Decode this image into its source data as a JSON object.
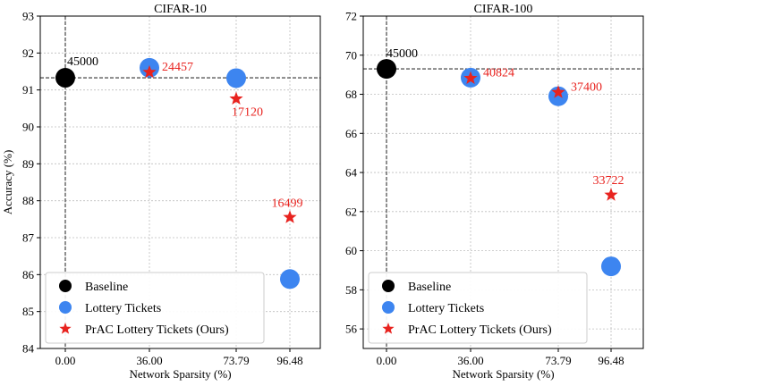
{
  "shared": {
    "xlabel": "Network Sparsity (%)",
    "ylabel": "Accuracy (%)",
    "xticks": [
      "0.00",
      "36.00",
      "73.79",
      "96.48"
    ],
    "legend": {
      "placement": "lower-left",
      "entries": [
        "Baseline",
        "Lottery Tickets",
        "PrAC Lottery Tickets (Ours)"
      ]
    },
    "colors": {
      "baseline": "#000000",
      "lottery": "#3d85f0",
      "prac": "#e8231f"
    },
    "grid": true
  },
  "chart_data": [
    {
      "type": "scatter",
      "title": "CIFAR-10",
      "xlabel": "Network Sparsity (%)",
      "ylabel": "Accuracy (%)",
      "xlim": [
        0,
        4
      ],
      "ylim": [
        84,
        93
      ],
      "yticks": [
        "84",
        "85",
        "86",
        "87",
        "88",
        "89",
        "90",
        "91",
        "92",
        "93"
      ],
      "baseline_line": 91.33,
      "series": [
        {
          "name": "Baseline",
          "marker": "circle",
          "points": [
            {
              "x": "0.00",
              "y": 91.33,
              "label": "45000"
            }
          ]
        },
        {
          "name": "Lottery Tickets",
          "marker": "circle",
          "points": [
            {
              "x": "36.00",
              "y": 91.6
            },
            {
              "x": "73.79",
              "y": 91.32
            },
            {
              "x": "96.48",
              "y": 85.88
            }
          ]
        },
        {
          "name": "PrAC Lottery Tickets (Ours)",
          "marker": "star",
          "points": [
            {
              "x": "36.00",
              "y": 91.48,
              "label": "24457"
            },
            {
              "x": "73.79",
              "y": 90.76,
              "label": "17120"
            },
            {
              "x": "96.48",
              "y": 87.55,
              "label": "16499"
            }
          ]
        }
      ]
    },
    {
      "type": "scatter",
      "title": "CIFAR-100",
      "xlabel": "Network Sparsity (%)",
      "ylabel": "",
      "xlim": [
        0,
        4
      ],
      "ylim": [
        55,
        72
      ],
      "yticks": [
        "56",
        "58",
        "60",
        "62",
        "64",
        "66",
        "68",
        "70",
        "72"
      ],
      "baseline_line": 69.3,
      "series": [
        {
          "name": "Baseline",
          "marker": "circle",
          "points": [
            {
              "x": "0.00",
              "y": 69.3,
              "label": "45000"
            }
          ]
        },
        {
          "name": "Lottery Tickets",
          "marker": "circle",
          "points": [
            {
              "x": "36.00",
              "y": 68.85
            },
            {
              "x": "73.79",
              "y": 67.9
            },
            {
              "x": "96.48",
              "y": 59.2
            }
          ]
        },
        {
          "name": "PrAC Lottery Tickets (Ours)",
          "marker": "star",
          "points": [
            {
              "x": "36.00",
              "y": 68.82,
              "label": "40824"
            },
            {
              "x": "73.79",
              "y": 68.1,
              "label": "37400"
            },
            {
              "x": "96.48",
              "y": 62.85,
              "label": "33722"
            }
          ]
        }
      ]
    }
  ]
}
